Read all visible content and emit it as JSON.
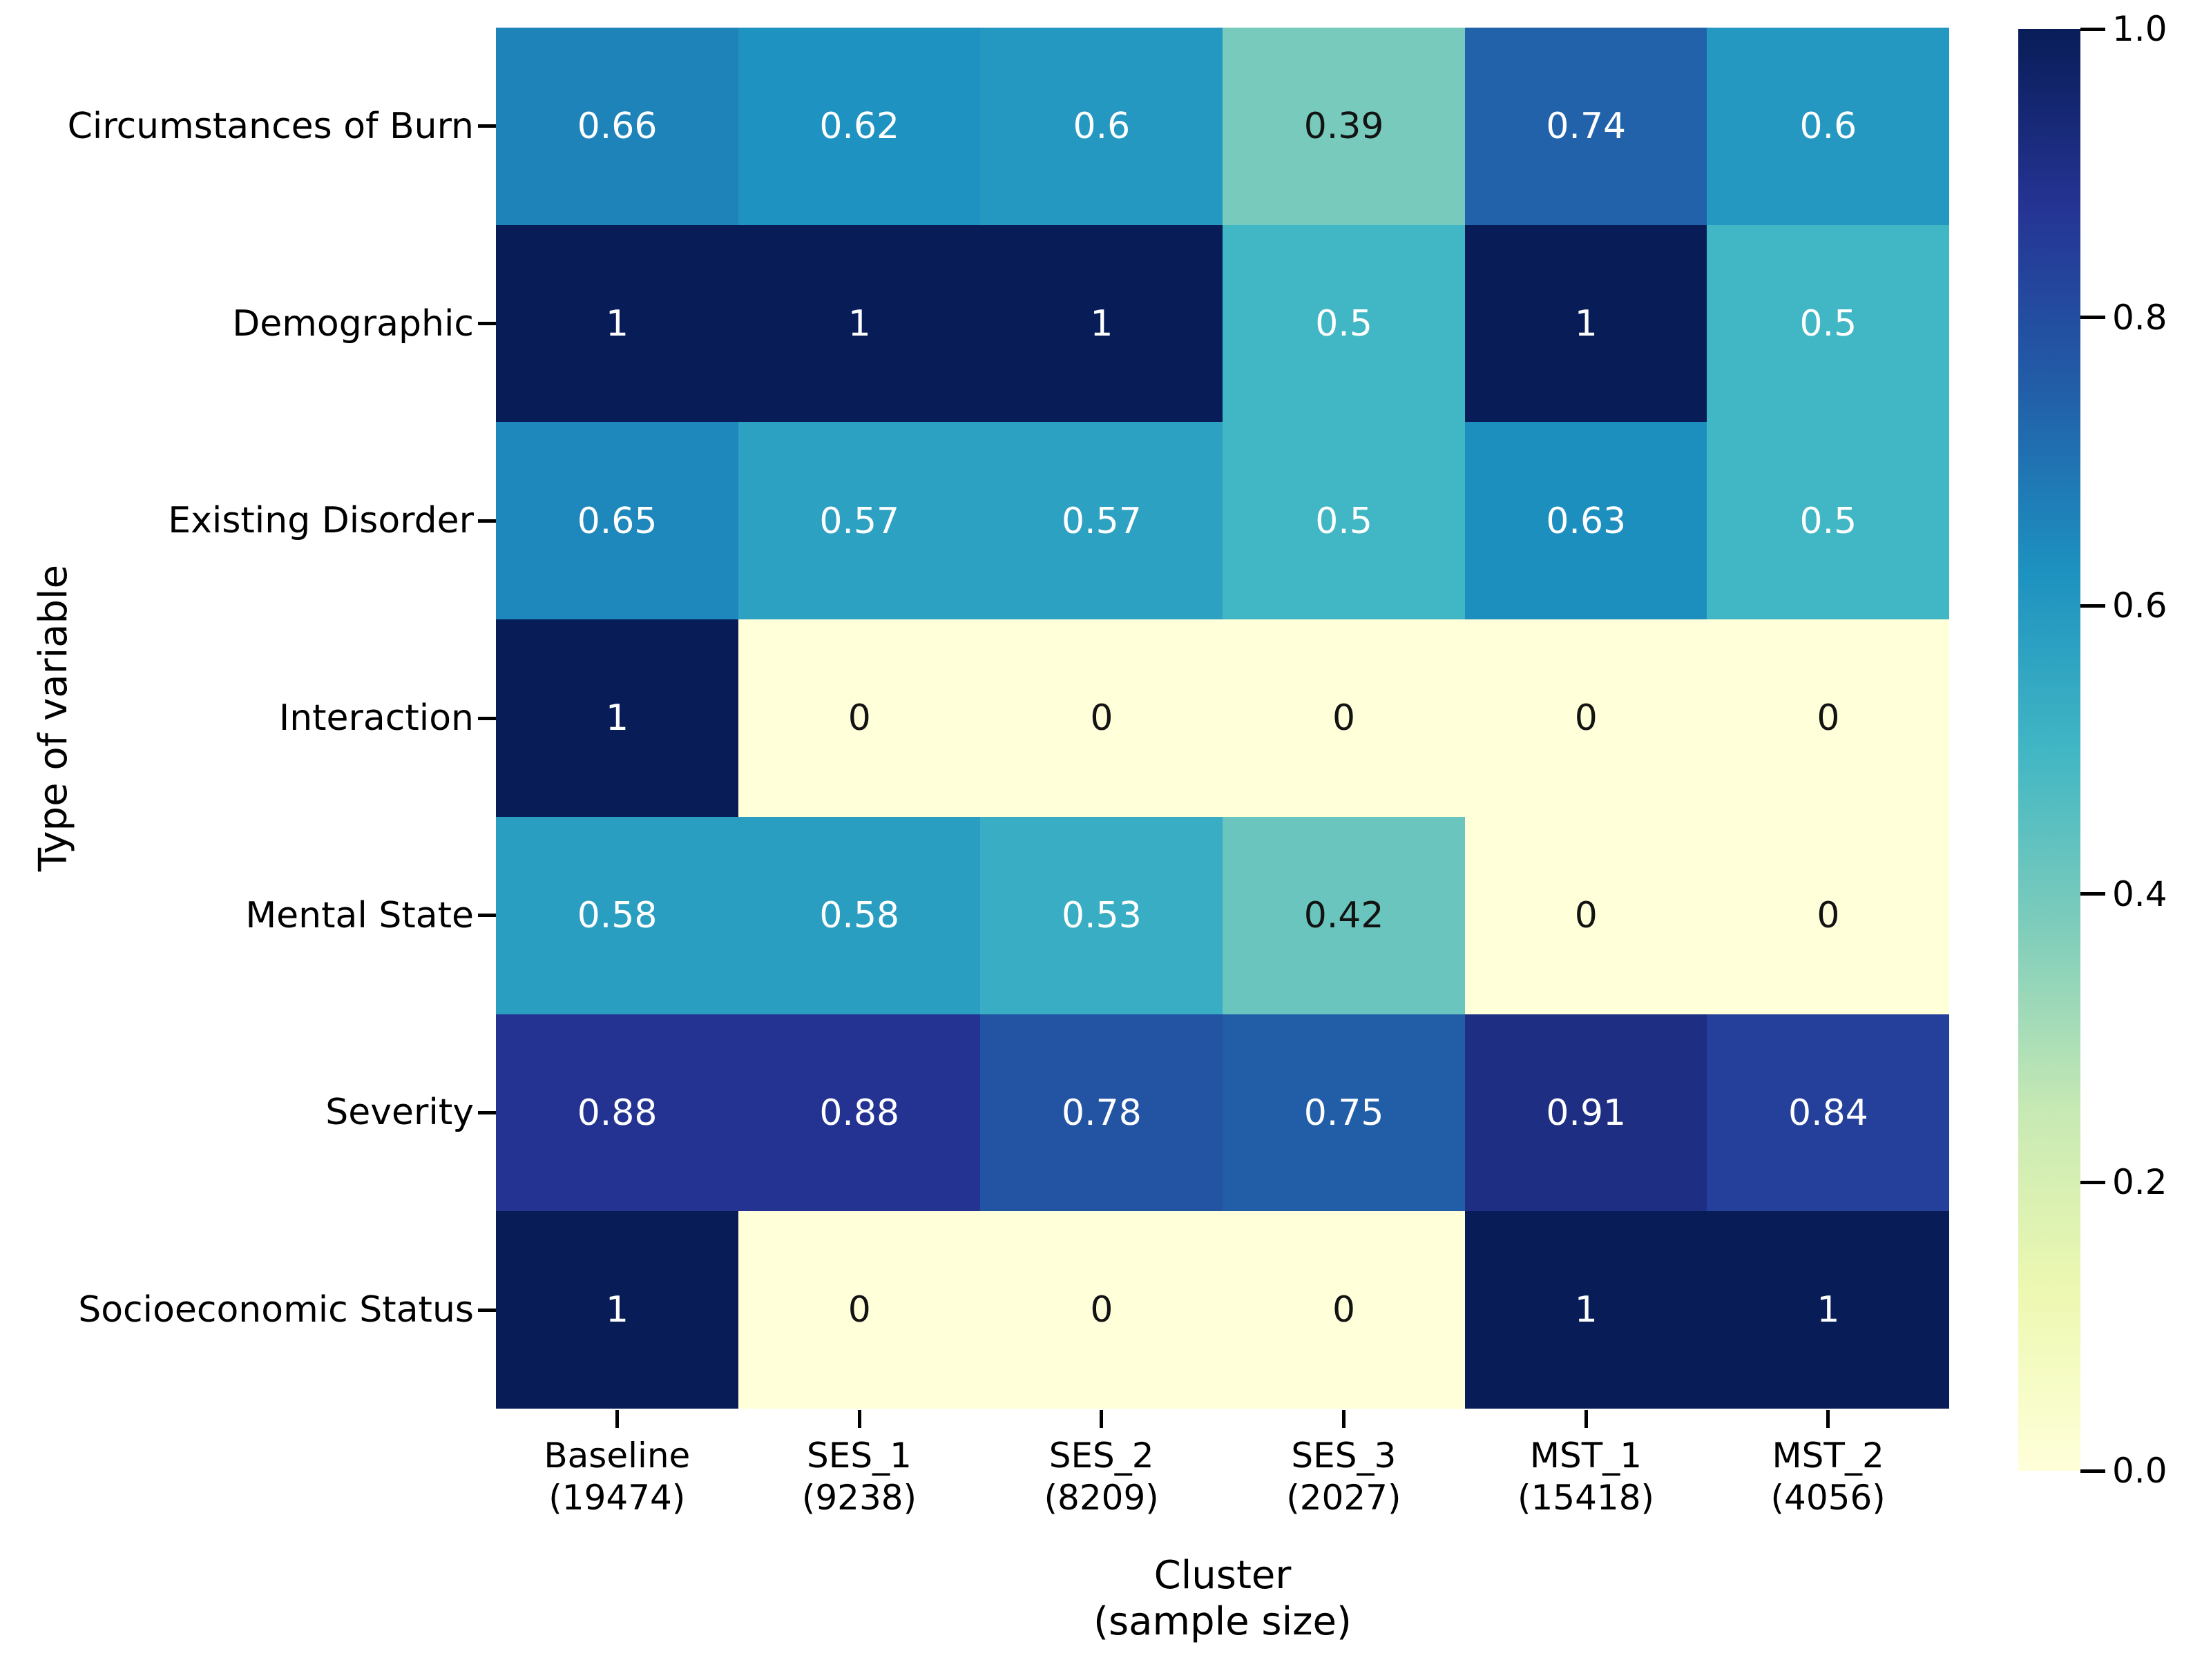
{
  "chart_data": {
    "type": "heatmap",
    "title": "",
    "xlabel": [
      "Cluster",
      "(sample size)"
    ],
    "ylabel": "Type of variable",
    "rows": [
      "Circumstances of Burn",
      "Demographic",
      "Existing Disorder",
      "Interaction",
      "Mental State",
      "Severity",
      "Socioeconomic Status"
    ],
    "columns": [
      {
        "label": "Baseline",
        "size": "(19474)"
      },
      {
        "label": "SES_1",
        "size": "(9238)"
      },
      {
        "label": "SES_2",
        "size": "(8209)"
      },
      {
        "label": "SES_3",
        "size": "(2027)"
      },
      {
        "label": "MST_1",
        "size": "(15418)"
      },
      {
        "label": "MST_2",
        "size": "(4056)"
      }
    ],
    "values": [
      [
        0.66,
        0.62,
        0.6,
        0.39,
        0.74,
        0.6
      ],
      [
        1,
        1,
        1,
        0.5,
        1,
        0.5
      ],
      [
        0.65,
        0.57,
        0.57,
        0.5,
        0.63,
        0.5
      ],
      [
        1,
        0,
        0,
        0,
        0,
        0
      ],
      [
        0.58,
        0.58,
        0.53,
        0.42,
        0,
        0
      ],
      [
        0.88,
        0.88,
        0.78,
        0.75,
        0.91,
        0.84
      ],
      [
        1,
        0,
        0,
        0,
        1,
        1
      ]
    ],
    "vmin": 0,
    "vmax": 1,
    "grid": false,
    "legend_position": "right-colorbar",
    "colorbar_ticks": [
      "1.0",
      "0.8",
      "0.6",
      "0.4",
      "0.2",
      "0.0"
    ],
    "colormap": {
      "name": "YlGnBu",
      "anchors": [
        [
          0.0,
          "#ffffd9"
        ],
        [
          0.125,
          "#edf8b1"
        ],
        [
          0.25,
          "#c7e9b4"
        ],
        [
          0.375,
          "#7fcdbb"
        ],
        [
          0.5,
          "#41b6c4"
        ],
        [
          0.625,
          "#1d91c0"
        ],
        [
          0.75,
          "#225ea8"
        ],
        [
          0.875,
          "#253494"
        ],
        [
          1.0,
          "#081d58"
        ]
      ]
    },
    "annotation_text_colors": {
      "light": "#ffffff",
      "dark": "#131313"
    },
    "axis_color": "#000000",
    "background": "#ffffff"
  }
}
